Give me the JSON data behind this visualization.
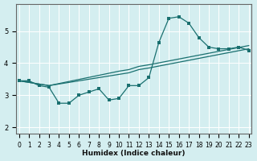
{
  "xlabel": "Humidex (Indice chaleur)",
  "bg_color": "#d4eef0",
  "grid_color": "#ffffff",
  "line_color": "#1a7070",
  "xlim": [
    -0.3,
    23.3
  ],
  "ylim": [
    1.8,
    5.85
  ],
  "xticks": [
    0,
    1,
    2,
    3,
    4,
    5,
    6,
    7,
    8,
    9,
    10,
    11,
    12,
    13,
    14,
    15,
    16,
    17,
    18,
    19,
    20,
    21,
    22,
    23
  ],
  "yticks": [
    2,
    3,
    4,
    5
  ],
  "line1_x": [
    0,
    1,
    2,
    3,
    4,
    5,
    6,
    7,
    8,
    9,
    10,
    11,
    12,
    13,
    14,
    15,
    16,
    17,
    18,
    19,
    20,
    21,
    22,
    23
  ],
  "line1_y": [
    3.45,
    3.45,
    3.3,
    3.25,
    2.75,
    2.75,
    3.0,
    3.1,
    3.2,
    2.85,
    2.9,
    3.3,
    3.3,
    3.55,
    4.65,
    5.4,
    5.45,
    5.25,
    4.8,
    4.5,
    4.45,
    4.45,
    4.5,
    4.4
  ],
  "line2_x": [
    0,
    2,
    3,
    10,
    11,
    12,
    13,
    23
  ],
  "line2_y": [
    3.45,
    3.35,
    3.3,
    3.75,
    3.8,
    3.9,
    3.95,
    4.55
  ],
  "line3_x": [
    0,
    2,
    3,
    10,
    11,
    12,
    13,
    23
  ],
  "line3_y": [
    3.45,
    3.35,
    3.3,
    3.65,
    3.7,
    3.8,
    3.85,
    4.45
  ]
}
